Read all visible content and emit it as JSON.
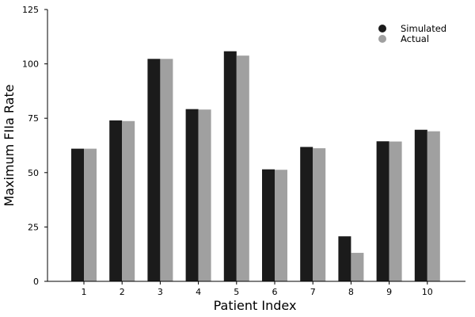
{
  "chart_data": {
    "type": "bar",
    "categories": [
      "1",
      "2",
      "3",
      "4",
      "5",
      "6",
      "7",
      "8",
      "9",
      "10"
    ],
    "series": [
      {
        "name": "Simulated",
        "color": "#1b1b1b",
        "values": [
          61,
          74,
          102.3,
          79.2,
          105.8,
          51.5,
          61.8,
          20.7,
          64.4,
          69.7
        ]
      },
      {
        "name": "Actual",
        "color": "#a0a0a0",
        "values": [
          61,
          73.7,
          102.3,
          79,
          103.8,
          51.3,
          61.2,
          13.1,
          64.3,
          69
        ]
      }
    ],
    "title": "",
    "xlabel": "Patient Index",
    "ylabel": "Maximum FIIa Rate",
    "ylim": [
      0,
      125
    ],
    "yticks": [
      0,
      25,
      50,
      75,
      100,
      125
    ],
    "grid": false,
    "legend_position": "top-right"
  }
}
